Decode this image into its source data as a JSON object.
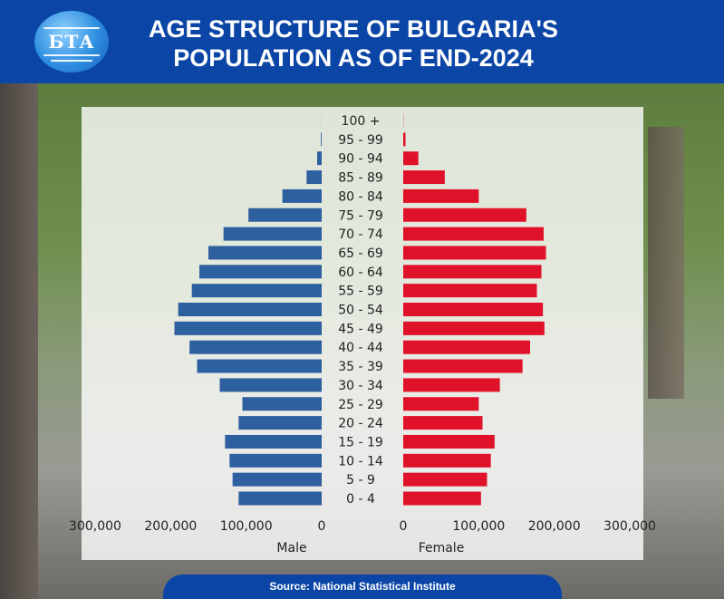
{
  "header": {
    "logo_text": "БТА",
    "title_line1": "AGE STRUCTURE OF BULGARIA'S",
    "title_line2": "POPULATION AS OF END-2024"
  },
  "footer": {
    "source": "Source: National Statistical Institute"
  },
  "colors": {
    "header_bg": "#0b46a6",
    "male": "#2e5f9e",
    "female": "#e0122a"
  },
  "chart_data": {
    "type": "bar",
    "orientation": "horizontal-population-pyramid",
    "categories": [
      "0 - 4",
      "5 - 9",
      "10 - 14",
      "15 - 19",
      "20 - 24",
      "25 - 29",
      "30 - 34",
      "35 - 39",
      "40 - 44",
      "45 - 49",
      "50 - 54",
      "55 - 59",
      "60 - 64",
      "65 - 69",
      "70 - 74",
      "75 - 79",
      "80 - 84",
      "85 - 89",
      "90 - 94",
      "95 - 99",
      "100 +"
    ],
    "series": [
      {
        "name": "Male",
        "values": [
          110000,
          118000,
          122000,
          128000,
          110000,
          105000,
          135000,
          165000,
          175000,
          195000,
          190000,
          172000,
          162000,
          150000,
          130000,
          97000,
          52000,
          20000,
          6000,
          1000,
          100
        ]
      },
      {
        "name": "Female",
        "values": [
          103000,
          111000,
          116000,
          121000,
          105000,
          100000,
          128000,
          158000,
          168000,
          187000,
          185000,
          177000,
          183000,
          189000,
          186000,
          163000,
          100000,
          55000,
          20000,
          3000,
          300
        ]
      }
    ],
    "xlabel_left": "Male",
    "xlabel_right": "Female",
    "xticks_left": [
      "300,000",
      "200,000",
      "100,000",
      "0"
    ],
    "xticks_right": [
      "0",
      "100,000",
      "200,000",
      "300,000"
    ],
    "xlim": [
      0,
      300000
    ]
  }
}
